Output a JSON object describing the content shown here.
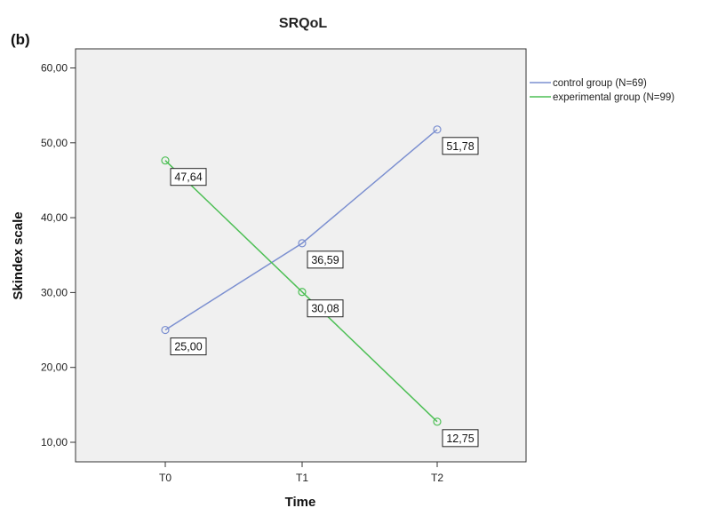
{
  "panel_label": "(b)",
  "chart_data": {
    "type": "line",
    "title": "SRQoL",
    "xlabel": "Time",
    "ylabel": "Skindex scale",
    "categories": [
      "T0",
      "T1",
      "T2"
    ],
    "y_ticks": [
      "10,00",
      "20,00",
      "30,00",
      "40,00",
      "50,00",
      "60,00"
    ],
    "ylim": [
      8,
      63
    ],
    "grid": false,
    "legend_position": "right",
    "series": [
      {
        "name": "control group (N=69)",
        "color": "#7b8fd0",
        "values": [
          25.0,
          36.59,
          51.78
        ],
        "labels": [
          "25,00",
          "36,59",
          "51,78"
        ]
      },
      {
        "name": "experimental group (N=99)",
        "color": "#4dbf55",
        "values": [
          47.64,
          30.08,
          12.75
        ],
        "labels": [
          "47,64",
          "30,08",
          "12,75"
        ]
      }
    ]
  }
}
